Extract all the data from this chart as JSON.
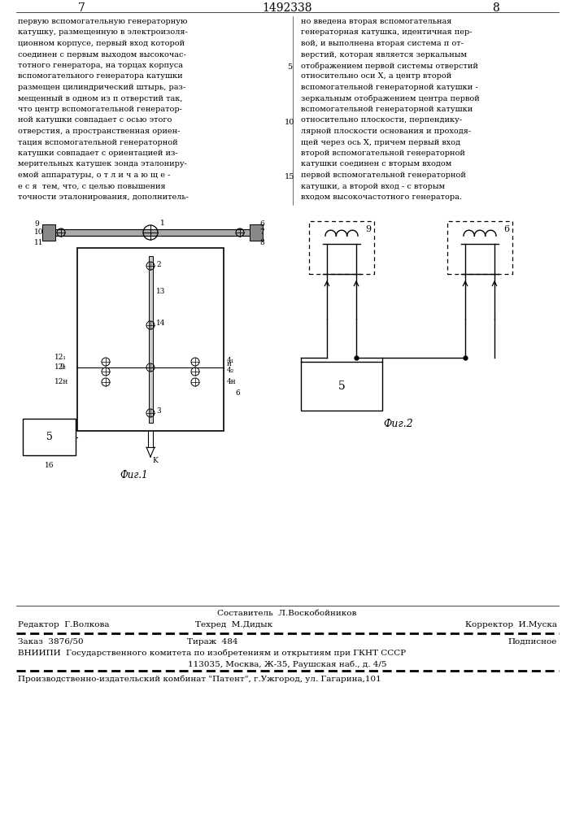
{
  "page_number_left": "7",
  "page_number_center": "1492338",
  "page_number_right": "8",
  "left_column_text": [
    "первую вспомогательную генераторную",
    "катушку, размещенную в электроизоля-",
    "ционном корпусе, первый вход которой",
    "соединен с первым выходом высокочас-",
    "тотного генератора, на торцах корпуса",
    "вспомогательного генератора катушки",
    "размещен цилиндрический штырь, раз-",
    "мещенный в одном из п отверстий так,",
    "что центр вспомогательной генератор-",
    "ной катушки совпадает с осью этого",
    "отверстия, а пространственная ориен-",
    "тация вспомогательной генераторной",
    "катушки совпадает с ориентацией из-",
    "мерительных катушек зонда эталониру-",
    "емой аппаратуры, о т л и ч а ю щ е -",
    "е с я  тем, что, с целью повышения",
    "точности эталонирования, дополнитель-"
  ],
  "line_numbers_rows": [
    4,
    9,
    14
  ],
  "line_numbers_vals": [
    "5",
    "10",
    "15"
  ],
  "right_column_text": [
    "но введена вторая вспомогательная",
    "генераторная катушка, идентичная пер-",
    "вой, и выполнена вторая система п от-",
    "верстий, которая является зеркальным",
    "отображением первой системы отверстий",
    "относительно оси Х, а центр второй",
    "вспомогательной генераторной катушки -",
    "зеркальным отображением центра первой",
    "вспомогательной генераторной катушки",
    "относительно плоскости, перпендику-",
    "лярной плоскости основания и проходя-",
    "щей через ось Х, причем первый вход",
    "второй вспомогательной генераторной",
    "катушки соединен с вторым входом",
    "первой вспомогательной генераторной",
    "катушки, а второй вход - с вторым",
    "входом высокочастотного генератора."
  ],
  "footer_sestavitel": "Составитель  Л.Воскобойников",
  "footer_redaktor": "Редактор  Г.Волкова",
  "footer_tekhred": "Техред  М.Дидык",
  "footer_korrektor": "Корректор  И.Муска",
  "footer_zakaz": "Заказ  3876/50",
  "footer_tirazh": "Тираж  484",
  "footer_podpisnoe": "Подписное",
  "footer_vniipи": "ВНИИПИ  Государственного комитета по изобретениям и открытиям при ГКНТ СССР",
  "footer_address": "113035, Москва, Ж-35, Раушская наб., д. 4/5",
  "footer_print": "Производственно-издательский комбинат \"Патент\", г.Ужгород, ул. Гагарина,101",
  "fig1_label": "Фиг.1",
  "fig2_label": "Фиг.2",
  "background": "#ffffff",
  "text_color": "#000000"
}
